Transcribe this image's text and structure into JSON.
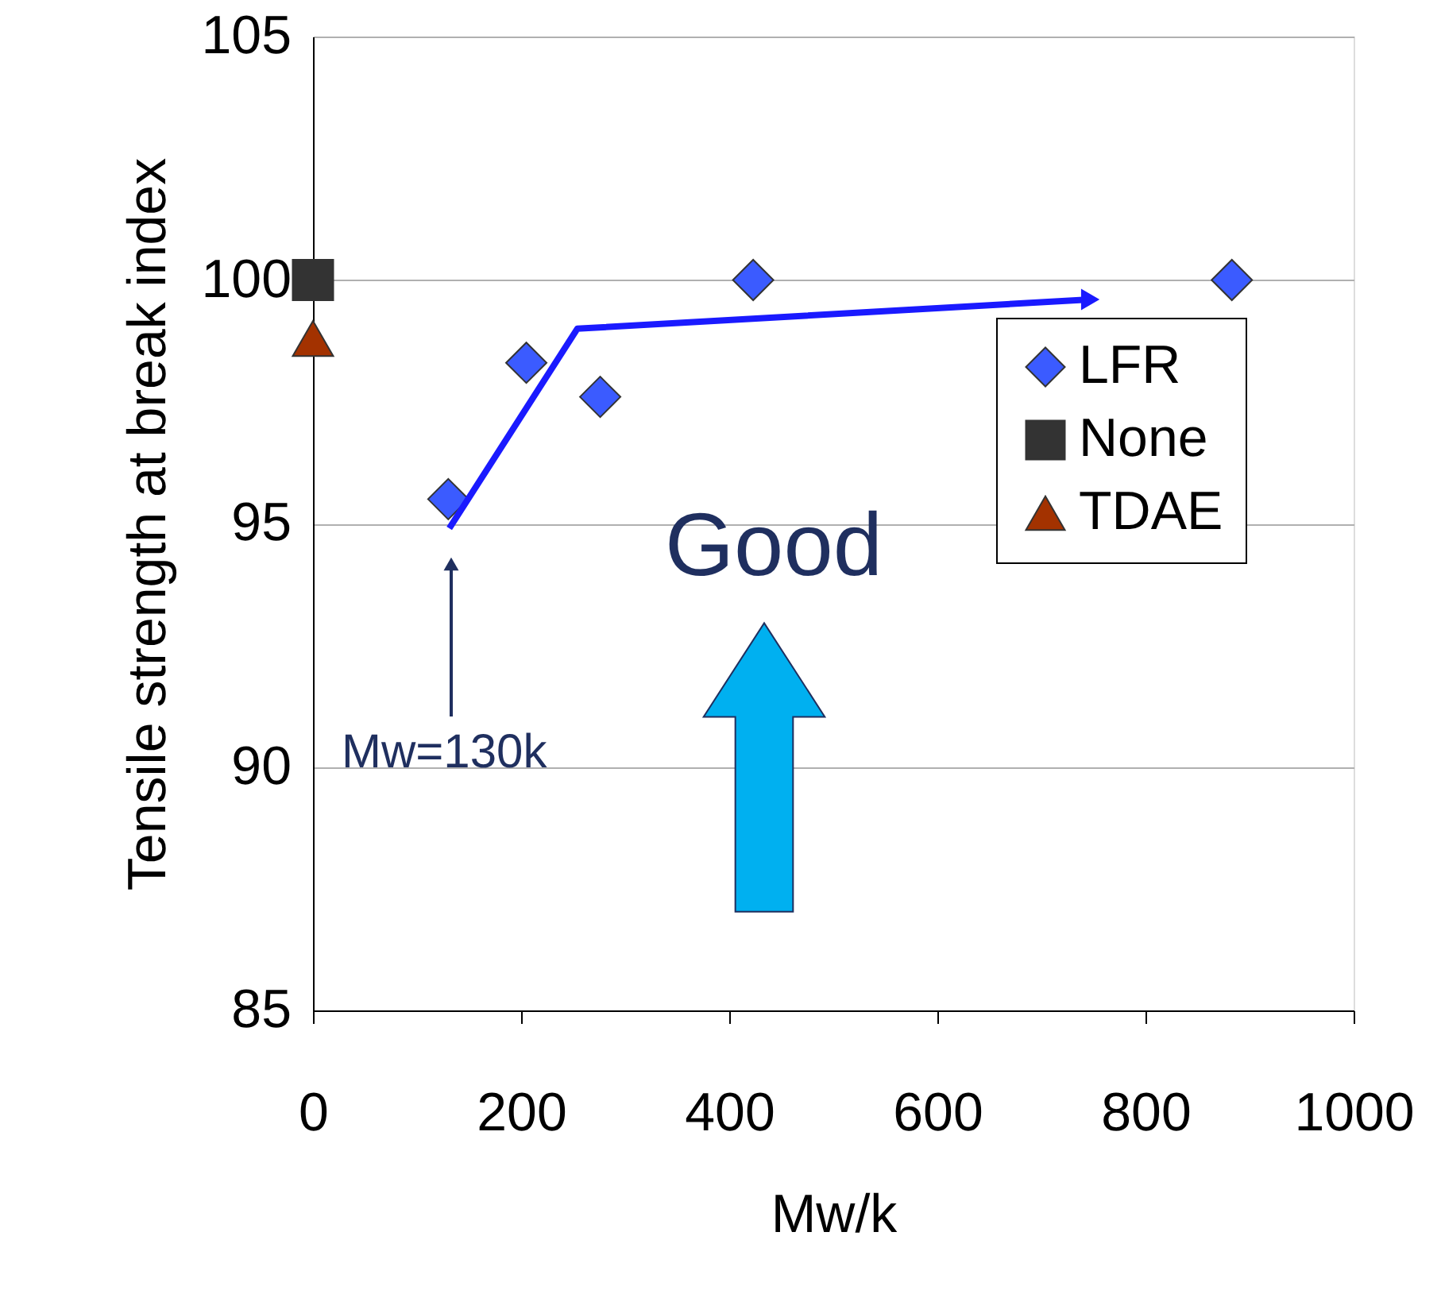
{
  "chart_data": {
    "type": "scatter",
    "xlabel": "Mw/k",
    "ylabel": "Tensile strength at break index",
    "xlim": [
      0,
      1000
    ],
    "xticks": [
      0,
      200,
      400,
      600,
      800,
      {
        "value": 1000,
        "label": "1000"
      }
    ],
    "ylim": [
      85,
      105
    ],
    "yticks": [
      85,
      90,
      95,
      100,
      105
    ],
    "grid": "y",
    "legend": "top right",
    "series": [
      {
        "name": "LFR",
        "color": "#3b5bff",
        "marker": "diamond",
        "x": [
          130,
          205,
          276,
          423,
          883
        ],
        "values": [
          95.5,
          98.3,
          97.6,
          100,
          100
        ]
      },
      {
        "name": "None",
        "color": "#333333",
        "marker": "square",
        "x": [
          0
        ],
        "values": [
          100
        ]
      },
      {
        "name": "TDAE",
        "color": "#a33200",
        "marker": "triangle",
        "x": [
          0
        ],
        "values": [
          98.8
        ]
      },
      {
        "type": "line",
        "color": "#1a1aff",
        "marker": "none",
        "x": [
          131,
          254,
          747
        ],
        "values": [
          94.9,
          99.0,
          99.6
        ]
      }
    ],
    "annotations": [
      "Mw=130k",
      "Good"
    ]
  }
}
